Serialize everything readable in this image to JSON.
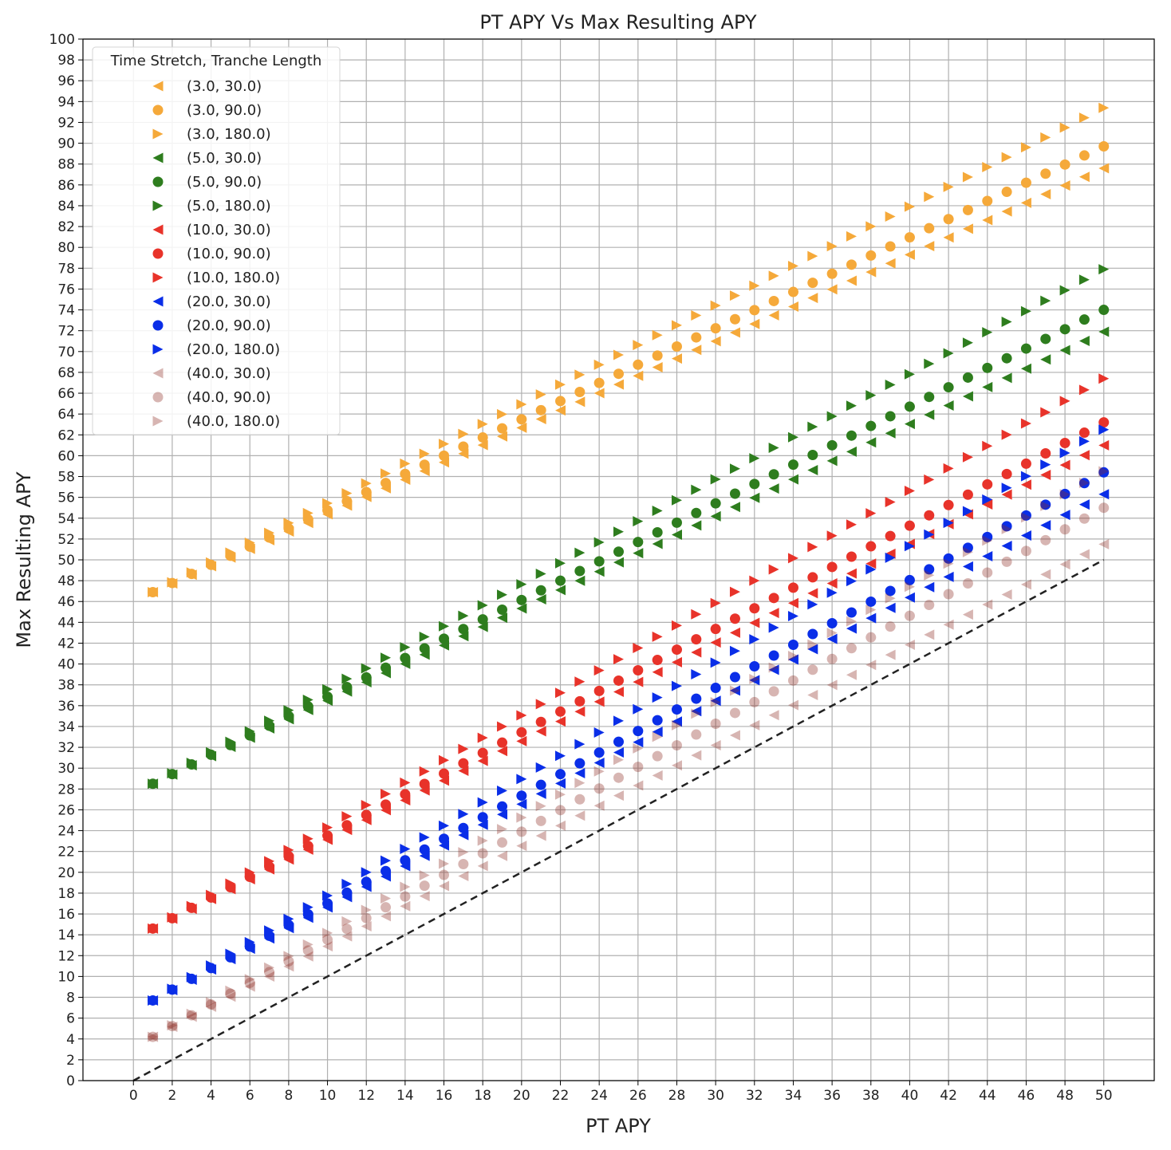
{
  "chart_data": {
    "type": "scatter",
    "title": "PT APY Vs Max Resulting APY",
    "xlabel": "PT APY",
    "ylabel": "Max Resulting APY",
    "xlim": [
      -2.6,
      52.6
    ],
    "ylim": [
      0,
      100
    ],
    "xticks": [
      0,
      2,
      4,
      6,
      8,
      10,
      12,
      14,
      16,
      18,
      20,
      22,
      24,
      26,
      28,
      30,
      32,
      34,
      36,
      38,
      40,
      42,
      44,
      46,
      48,
      50
    ],
    "yticks": [
      0,
      2,
      4,
      6,
      8,
      10,
      12,
      14,
      16,
      18,
      20,
      22,
      24,
      26,
      28,
      30,
      32,
      34,
      36,
      38,
      40,
      42,
      44,
      46,
      48,
      50,
      52,
      54,
      56,
      58,
      60,
      62,
      64,
      66,
      68,
      70,
      72,
      74,
      76,
      78,
      80,
      82,
      84,
      86,
      88,
      90,
      92,
      94,
      96,
      98,
      100
    ],
    "grid": true,
    "x_points": [
      1,
      2,
      3,
      4,
      5,
      6,
      7,
      8,
      9,
      10,
      11,
      12,
      13,
      14,
      15,
      16,
      17,
      18,
      19,
      20,
      21,
      22,
      23,
      24,
      25,
      26,
      27,
      28,
      29,
      30,
      31,
      32,
      33,
      34,
      35,
      36,
      37,
      38,
      39,
      40,
      41,
      42,
      43,
      44,
      45,
      46,
      47,
      48,
      49,
      50
    ],
    "legend_title": "Time Stretch, Tranche Length",
    "legend_position": "upper-left",
    "reference_line": {
      "style": "dashed",
      "color": "#222222",
      "x": [
        0,
        50
      ],
      "y": [
        0,
        50
      ]
    },
    "series": [
      {
        "name": "(3.0, 30.0)",
        "marker": "triangle-left",
        "color": "#f5a93a",
        "alpha": 1,
        "start": 46.9,
        "end": 87.6
      },
      {
        "name": "(3.0, 90.0)",
        "marker": "circle",
        "color": "#f5a93a",
        "alpha": 1,
        "start": 46.9,
        "end": 89.7
      },
      {
        "name": "(3.0, 180.0)",
        "marker": "triangle-right",
        "color": "#f5a93a",
        "alpha": 1,
        "start": 46.9,
        "end": 93.4
      },
      {
        "name": "(5.0, 30.0)",
        "marker": "triangle-left",
        "color": "#2e7d1e",
        "alpha": 1,
        "start": 28.5,
        "end": 71.9
      },
      {
        "name": "(5.0, 90.0)",
        "marker": "circle",
        "color": "#2e7d1e",
        "alpha": 1,
        "start": 28.5,
        "end": 74.0
      },
      {
        "name": "(5.0, 180.0)",
        "marker": "triangle-right",
        "color": "#2e7d1e",
        "alpha": 1,
        "start": 28.5,
        "end": 77.9
      },
      {
        "name": "(10.0, 30.0)",
        "marker": "triangle-left",
        "color": "#e8332a",
        "alpha": 1,
        "start": 14.6,
        "end": 61.0
      },
      {
        "name": "(10.0, 90.0)",
        "marker": "circle",
        "color": "#e8332a",
        "alpha": 1,
        "start": 14.6,
        "end": 63.2
      },
      {
        "name": "(10.0, 180.0)",
        "marker": "triangle-right",
        "color": "#e8332a",
        "alpha": 1,
        "start": 14.6,
        "end": 67.4
      },
      {
        "name": "(20.0, 30.0)",
        "marker": "triangle-left",
        "color": "#0a2ee8",
        "alpha": 1,
        "start": 7.7,
        "end": 56.3
      },
      {
        "name": "(20.0, 90.0)",
        "marker": "circle",
        "color": "#0a2ee8",
        "alpha": 1,
        "start": 7.7,
        "end": 58.4
      },
      {
        "name": "(20.0, 180.0)",
        "marker": "triangle-right",
        "color": "#0a2ee8",
        "alpha": 1,
        "start": 7.7,
        "end": 62.5
      },
      {
        "name": "(40.0, 30.0)",
        "marker": "triangle-left",
        "color": "#8b2a22",
        "alpha": 0.35,
        "start": 4.2,
        "end": 51.5
      },
      {
        "name": "(40.0, 90.0)",
        "marker": "circle",
        "color": "#8b2a22",
        "alpha": 0.35,
        "start": 4.2,
        "end": 55.0
      },
      {
        "name": "(40.0, 180.0)",
        "marker": "triangle-right",
        "color": "#8b2a22",
        "alpha": 0.35,
        "start": 4.2,
        "end": 58.5
      }
    ]
  }
}
